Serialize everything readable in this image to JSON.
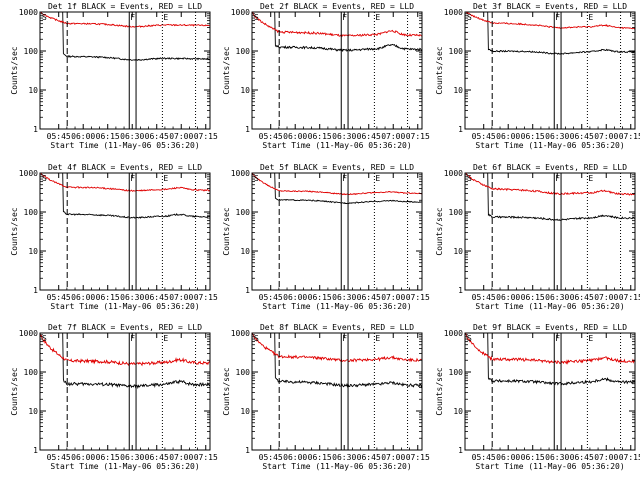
{
  "chart_data": [
    {
      "type": "line",
      "title": "Det 1f BLACK = Events, RED = LLD",
      "xlabel": "Start Time (11-May-06 05:36:20)",
      "ylabel": "Counts/sec",
      "yscale": "log",
      "ylim": [
        1,
        1000
      ],
      "xlim_minutes": [
        0,
        92
      ],
      "x_ticks": [
        "05:45",
        "06:00",
        "06:15",
        "06:30",
        "06:45",
        "07:00",
        "07:15"
      ],
      "y_ticks": [
        "1",
        "10",
        "100",
        "1000"
      ],
      "flags": [
        "S",
        "F",
        "E"
      ],
      "lld_start": 1100,
      "lld_level": 520,
      "lld_end": 450,
      "events_level": 75,
      "events_end": 62,
      "bump_level": 0,
      "noise": 0.04,
      "series": [
        {
          "name": "BLACK = Events",
          "color": "#000000"
        },
        {
          "name": "RED = LLD",
          "color": "#e00000"
        }
      ]
    },
    {
      "type": "line",
      "title": "Det 2f BLACK = Events, RED = LLD",
      "xlabel": "Start Time (11-May-06 05:36:20)",
      "ylabel": "Counts/sec",
      "yscale": "log",
      "ylim": [
        1,
        1000
      ],
      "xlim_minutes": [
        0,
        92
      ],
      "x_ticks": [
        "05:45",
        "06:00",
        "06:15",
        "06:30",
        "06:45",
        "07:00",
        "07:15"
      ],
      "y_ticks": [
        "1",
        "10",
        "100",
        "1000"
      ],
      "flags": [
        "S",
        "F",
        "E"
      ],
      "lld_start": 1100,
      "lld_level": 320,
      "lld_end": 250,
      "events_level": 130,
      "events_end": 110,
      "bump_level": 0.25,
      "noise": 0.06,
      "series": [
        {
          "name": "BLACK = Events",
          "color": "#000000"
        },
        {
          "name": "RED = LLD",
          "color": "#e00000"
        }
      ]
    },
    {
      "type": "line",
      "title": "Det 3f BLACK = Events, RED = LLD",
      "xlabel": "Start Time (11-May-06 05:36:20)",
      "ylabel": "Counts/sec",
      "yscale": "log",
      "ylim": [
        1,
        1000
      ],
      "xlim_minutes": [
        0,
        92
      ],
      "x_ticks": [
        "05:45",
        "06:00",
        "06:15",
        "06:30",
        "06:45",
        "07:00",
        "07:15"
      ],
      "y_ticks": [
        "1",
        "10",
        "100",
        "1000"
      ],
      "flags": [
        "S",
        "F",
        "E"
      ],
      "lld_start": 1100,
      "lld_level": 560,
      "lld_end": 380,
      "events_level": 100,
      "events_end": 95,
      "bump_level": 0.12,
      "noise": 0.04,
      "series": [
        {
          "name": "BLACK = Events",
          "color": "#000000"
        },
        {
          "name": "RED = LLD",
          "color": "#e00000"
        }
      ]
    },
    {
      "type": "line",
      "title": "Det 4f BLACK = Events, RED = LLD",
      "xlabel": "Start Time (11-May-06 05:36:20)",
      "ylabel": "Counts/sec",
      "yscale": "log",
      "ylim": [
        1,
        1000
      ],
      "xlim_minutes": [
        0,
        92
      ],
      "x_ticks": [
        "05:45",
        "06:00",
        "06:15",
        "06:30",
        "06:45",
        "07:00",
        "07:15"
      ],
      "y_ticks": [
        "1",
        "10",
        "100",
        "1000"
      ],
      "flags": [
        "S",
        "F",
        "E"
      ],
      "lld_start": 1100,
      "lld_level": 450,
      "lld_end": 360,
      "events_level": 90,
      "events_end": 75,
      "bump_level": 0.12,
      "noise": 0.04,
      "series": [
        {
          "name": "BLACK = Events",
          "color": "#000000"
        },
        {
          "name": "RED = LLD",
          "color": "#e00000"
        }
      ]
    },
    {
      "type": "line",
      "title": "Det 5f BLACK = Events, RED = LLD",
      "xlabel": "Start Time (11-May-06 05:36:20)",
      "ylabel": "Counts/sec",
      "yscale": "log",
      "ylim": [
        1,
        1000
      ],
      "xlim_minutes": [
        0,
        92
      ],
      "x_ticks": [
        "05:45",
        "06:00",
        "06:15",
        "06:30",
        "06:45",
        "07:00",
        "07:15"
      ],
      "y_ticks": [
        "1",
        "10",
        "100",
        "1000"
      ],
      "flags": [
        "S",
        "F",
        "E"
      ],
      "lld_start": 1100,
      "lld_level": 360,
      "lld_end": 300,
      "events_level": 210,
      "events_end": 180,
      "bump_level": 0.06,
      "noise": 0.03,
      "series": [
        {
          "name": "BLACK = Events",
          "color": "#000000"
        },
        {
          "name": "RED = LLD",
          "color": "#e00000"
        }
      ]
    },
    {
      "type": "line",
      "title": "Det 6f BLACK = Events, RED = LLD",
      "xlabel": "Start Time (11-May-06 05:36:20)",
      "ylabel": "Counts/sec",
      "yscale": "log",
      "ylim": [
        1,
        1000
      ],
      "xlim_minutes": [
        0,
        92
      ],
      "x_ticks": [
        "05:45",
        "06:00",
        "06:15",
        "06:30",
        "06:45",
        "07:00",
        "07:15"
      ],
      "y_ticks": [
        "1",
        "10",
        "100",
        "1000"
      ],
      "flags": [
        "S",
        "F",
        "E"
      ],
      "lld_start": 1100,
      "lld_level": 420,
      "lld_end": 280,
      "events_level": 75,
      "events_end": 70,
      "bump_level": 0.15,
      "noise": 0.05,
      "series": [
        {
          "name": "BLACK = Events",
          "color": "#000000"
        },
        {
          "name": "RED = LLD",
          "color": "#e00000"
        }
      ]
    },
    {
      "type": "line",
      "title": "Det 7f BLACK = Events, RED = LLD",
      "xlabel": "Start Time (11-May-06 05:36:20)",
      "ylabel": "Counts/sec",
      "yscale": "log",
      "ylim": [
        1,
        1000
      ],
      "xlim_minutes": [
        0,
        92
      ],
      "x_ticks": [
        "05:45",
        "06:00",
        "06:15",
        "06:30",
        "06:45",
        "07:00",
        "07:15"
      ],
      "y_ticks": [
        "1",
        "10",
        "100",
        "1000"
      ],
      "flags": [
        "S",
        "F",
        "E"
      ],
      "lld_start": 1100,
      "lld_level": 200,
      "lld_end": 170,
      "events_level": 50,
      "events_end": 48,
      "bump_level": 0.18,
      "noise": 0.09,
      "series": [
        {
          "name": "BLACK = Events",
          "color": "#000000"
        },
        {
          "name": "RED = LLD",
          "color": "#e00000"
        }
      ]
    },
    {
      "type": "line",
      "title": "Det 8f BLACK = Events, RED = LLD",
      "xlabel": "Start Time (11-May-06 05:36:20)",
      "ylabel": "Counts/sec",
      "yscale": "log",
      "ylim": [
        1,
        1000
      ],
      "xlim_minutes": [
        0,
        92
      ],
      "x_ticks": [
        "05:45",
        "06:00",
        "06:15",
        "06:30",
        "06:45",
        "07:00",
        "07:15"
      ],
      "y_ticks": [
        "1",
        "10",
        "100",
        "1000"
      ],
      "flags": [
        "S",
        "F",
        "E"
      ],
      "lld_start": 1100,
      "lld_level": 260,
      "lld_end": 200,
      "events_level": 60,
      "events_end": 45,
      "bump_level": 0.12,
      "noise": 0.08,
      "series": [
        {
          "name": "BLACK = Events",
          "color": "#000000"
        },
        {
          "name": "RED = LLD",
          "color": "#e00000"
        }
      ]
    },
    {
      "type": "line",
      "title": "Det 9f BLACK = Events, RED = LLD",
      "xlabel": "Start Time (11-May-06 05:36:20)",
      "ylabel": "Counts/sec",
      "yscale": "log",
      "ylim": [
        1,
        1000
      ],
      "xlim_minutes": [
        0,
        92
      ],
      "x_ticks": [
        "05:45",
        "06:00",
        "06:15",
        "06:30",
        "06:45",
        "07:00",
        "07:15"
      ],
      "y_ticks": [
        "1",
        "10",
        "100",
        "1000"
      ],
      "flags": [
        "S",
        "F",
        "E"
      ],
      "lld_start": 1100,
      "lld_level": 220,
      "lld_end": 190,
      "events_level": 60,
      "events_end": 55,
      "bump_level": 0.18,
      "noise": 0.08,
      "series": [
        {
          "name": "BLACK = Events",
          "color": "#000000"
        },
        {
          "name": "RED = LLD",
          "color": "#e00000"
        }
      ]
    }
  ]
}
